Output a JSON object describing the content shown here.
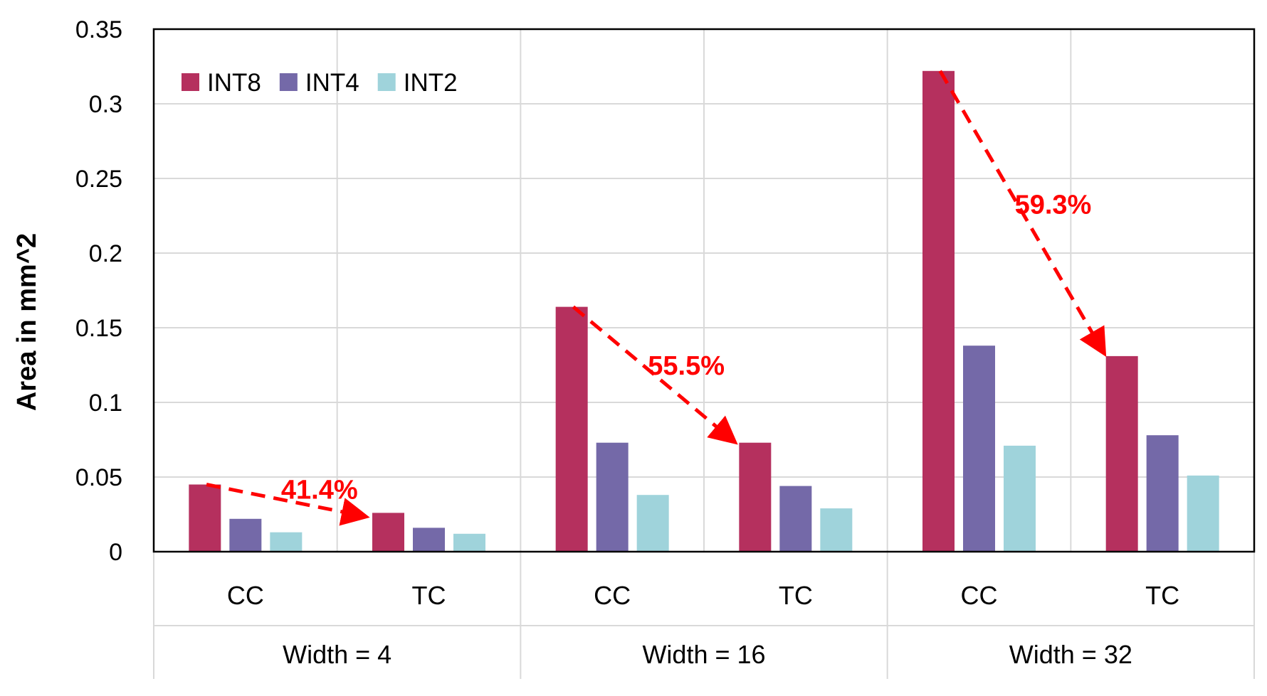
{
  "chart_data": {
    "type": "bar",
    "title": "",
    "xlabel": "",
    "ylabel": "Area in mm^2",
    "ylim": [
      0,
      0.35
    ],
    "yticks": [
      "0",
      "0.05",
      "0.1",
      "0.15",
      "0.2",
      "0.25",
      "0.3",
      "0.35"
    ],
    "grid": true,
    "legend_position": "top-left",
    "groups": [
      "Width = 4",
      "Width = 16",
      "Width = 32"
    ],
    "categories": [
      "CC",
      "TC",
      "CC",
      "TC",
      "CC",
      "TC"
    ],
    "series": [
      {
        "name": "INT8",
        "color": "#b5305e",
        "values": [
          0.045,
          0.026,
          0.164,
          0.073,
          0.322,
          0.131
        ]
      },
      {
        "name": "INT4",
        "color": "#7469a8",
        "values": [
          0.022,
          0.016,
          0.073,
          0.044,
          0.138,
          0.078
        ]
      },
      {
        "name": "INT2",
        "color": "#9fd3db",
        "values": [
          0.013,
          0.012,
          0.038,
          0.029,
          0.071,
          0.051
        ]
      }
    ],
    "annotations": [
      {
        "text": "41.4%",
        "from_category": 0,
        "to_category": 1
      },
      {
        "text": "55.5%",
        "from_category": 2,
        "to_category": 3
      },
      {
        "text": "59.3%",
        "from_category": 4,
        "to_category": 5
      }
    ],
    "annotation_color": "#ff0000"
  }
}
